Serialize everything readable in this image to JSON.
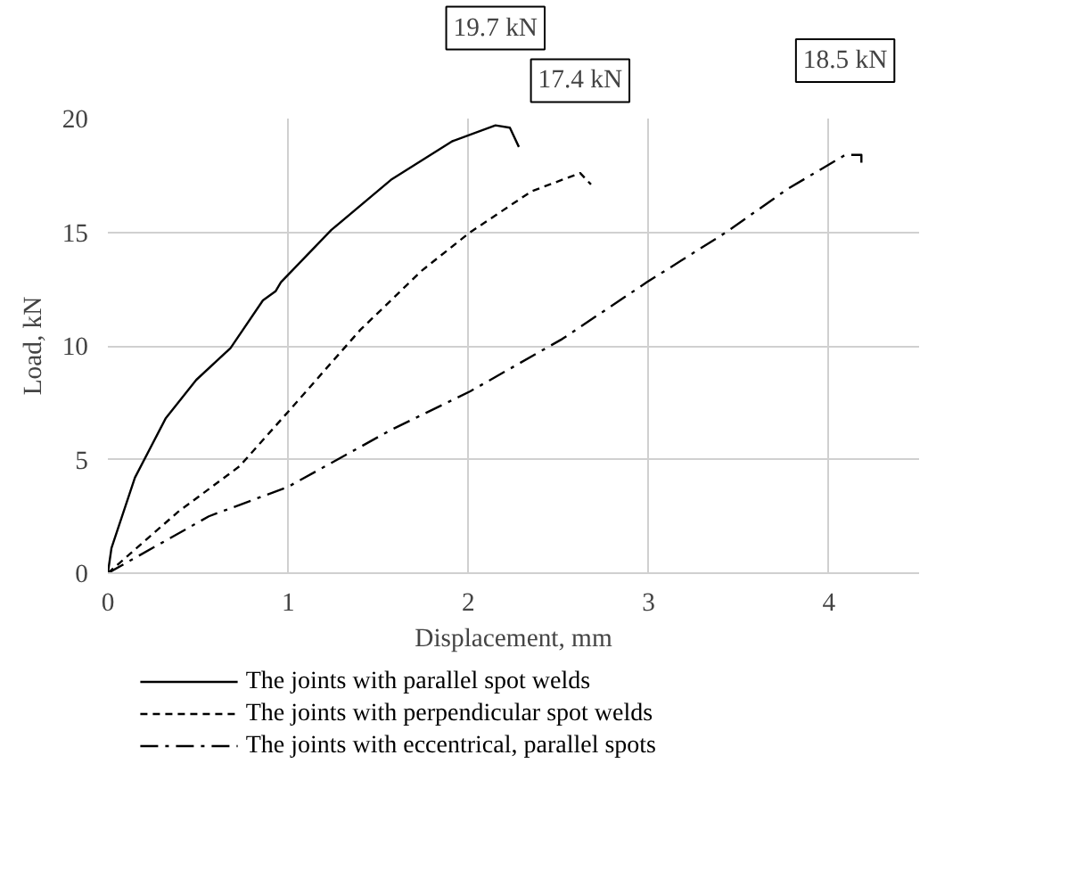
{
  "chart_data": {
    "type": "line",
    "xlabel": "Displacement, mm",
    "ylabel": "Load, kN",
    "xlim": [
      0,
      4.5
    ],
    "ylim": [
      0,
      20
    ],
    "xticks": [
      0,
      1,
      2,
      3,
      4
    ],
    "yticks": [
      0,
      5,
      10,
      15,
      20
    ],
    "grid": true,
    "legend": "bottom",
    "marker": "none",
    "series": [
      {
        "name": "The joints with parallel spot welds",
        "color": "#000000",
        "line_style": "solid",
        "x": [
          0,
          0.02,
          0.15,
          0.32,
          0.49,
          0.68,
          0.86,
          0.93,
          0.96,
          1.24,
          1.57,
          1.91,
          2.15,
          2.23,
          2.28
        ],
        "values": [
          0,
          1.1,
          4.2,
          6.8,
          8.5,
          9.9,
          12.0,
          12.4,
          12.8,
          15.1,
          17.3,
          19.0,
          19.7,
          19.6,
          18.75
        ]
      },
      {
        "name": "The joints with perpendicular spot welds",
        "color": "#000000",
        "line_style": "dashed",
        "x": [
          0,
          0.39,
          0.73,
          1.0,
          1.4,
          1.74,
          2.01,
          2.35,
          2.62,
          2.68
        ],
        "values": [
          0,
          2.7,
          4.7,
          7.1,
          10.7,
          13.3,
          15.0,
          16.8,
          17.6,
          17.1
        ]
      },
      {
        "name": "The joints with eccentrical, parallel spots",
        "color": "#000000",
        "line_style": "dashdot",
        "x": [
          0,
          0.56,
          1.0,
          1.57,
          2.01,
          2.52,
          2.99,
          3.43,
          3.77,
          4.09,
          4.18,
          4.18
        ],
        "values": [
          0,
          2.5,
          3.8,
          6.3,
          8.0,
          10.3,
          12.8,
          15.0,
          16.9,
          18.4,
          18.4,
          18.0
        ]
      }
    ],
    "annotations": [
      "19.7 kN",
      "17.4 kN",
      "18.5 kN"
    ]
  }
}
